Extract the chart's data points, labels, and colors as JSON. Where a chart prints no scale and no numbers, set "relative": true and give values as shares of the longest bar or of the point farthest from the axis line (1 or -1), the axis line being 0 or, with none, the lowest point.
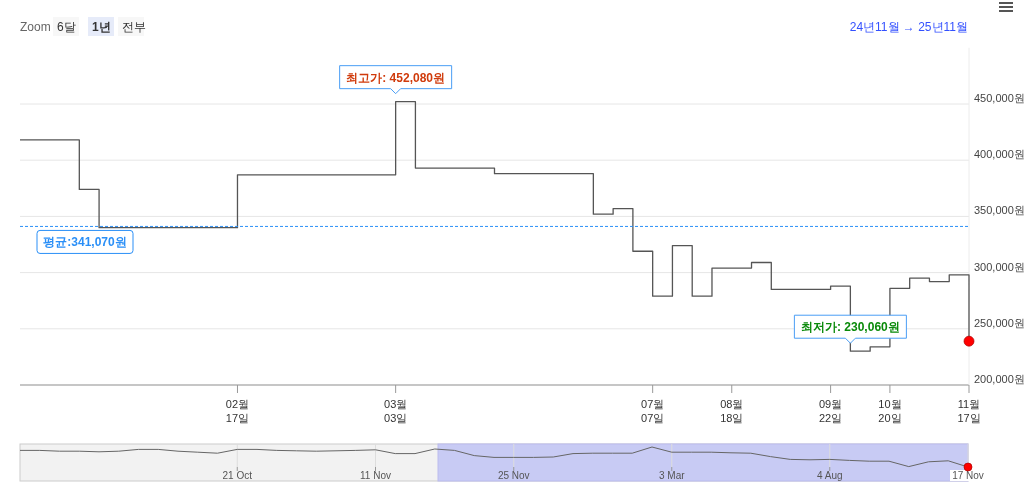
{
  "chart_data": [
    {
      "type": "step",
      "annotations": [
        "Zoom",
        "6달",
        "1년",
        "전부",
        "24년11월 → 25년11월",
        {
          "text": "최고가: 452,080원",
          "y": 452080
        },
        {
          "text": "최저가: 230,060원",
          "y": 230060
        }
      ],
      "categories": [
        null,
        null,
        null,
        null,
        null,
        null,
        null,
        null,
        null,
        null,
        null,
        "02월\n17일",
        null,
        null,
        null,
        null,
        null,
        null,
        null,
        "03월\n03일",
        null,
        null,
        null,
        null,
        null,
        null,
        null,
        null,
        null,
        null,
        null,
        null,
        "07월\n07일",
        null,
        null,
        null,
        "08월\n18일",
        null,
        null,
        null,
        null,
        "09월\n22일",
        null,
        null,
        "10월\n20일",
        null,
        null,
        null,
        "11월\n17일"
      ],
      "series": [
        {
          "color": "#555555",
          "values": [
            418000,
            418000,
            418000,
            374000,
            340000,
            340000,
            340000,
            340000,
            340000,
            340000,
            340000,
            387000,
            387000,
            387000,
            387000,
            387000,
            387000,
            387000,
            387000,
            452080,
            393000,
            393000,
            393000,
            393000,
            388000,
            388000,
            388000,
            388000,
            388000,
            352000,
            357000,
            319000,
            279000,
            324000,
            279000,
            304000,
            304000,
            309000,
            285000,
            285000,
            285000,
            288000,
            230060,
            234000,
            286000,
            295000,
            292000,
            298000,
            239000
          ]
        },
        {
          "type": "scatter",
          "marker": "circle",
          "color": "#ff0000",
          "values": [
            null,
            null,
            null,
            null,
            null,
            null,
            null,
            null,
            null,
            null,
            null,
            null,
            null,
            null,
            null,
            null,
            null,
            null,
            null,
            null,
            null,
            null,
            null,
            null,
            null,
            null,
            null,
            null,
            null,
            null,
            null,
            null,
            null,
            null,
            null,
            null,
            null,
            null,
            null,
            null,
            null,
            null,
            null,
            null,
            null,
            null,
            null,
            null,
            239000
          ]
        }
      ],
      "ylim": [
        200000,
        500000
      ],
      "yticks": [
        {
          "value": 200000,
          "label": "200,000원"
        },
        {
          "value": 250000,
          "label": "250,000원"
        },
        {
          "value": 300000,
          "label": "300,000원"
        },
        {
          "value": 350000,
          "label": "350,000원"
        },
        {
          "value": 400000,
          "label": "400,000원"
        },
        {
          "value": 450000,
          "label": "450,000원"
        }
      ],
      "ref_lines": [
        {
          "axis": "y",
          "value": 341070,
          "label": "평균:341,070원",
          "color": "#2a8ff7",
          "line_style": "dashed"
        }
      ],
      "grid": "y",
      "marker": "none",
      "line_style": "solid"
    },
    {
      "type": "line",
      "relative": true,
      "categories": [
        null,
        null,
        null,
        null,
        null,
        null,
        null,
        null,
        null,
        null,
        null,
        "21 Oct",
        null,
        null,
        null,
        null,
        null,
        null,
        "11 Nov",
        null,
        null,
        null,
        null,
        null,
        null,
        "25 Nov",
        null,
        null,
        null,
        null,
        null,
        null,
        null,
        "3 Mar",
        null,
        null,
        null,
        null,
        null,
        null,
        null,
        "4 Aug",
        null,
        null,
        null,
        null,
        null,
        null,
        "17 Nov"
      ],
      "series": [
        {
          "color": "#666666",
          "values": [
            0.83,
            0.83,
            0.79,
            0.79,
            0.76,
            0.79,
            0.88,
            0.88,
            0.79,
            0.74,
            0.69,
            0.88,
            0.88,
            0.83,
            0.81,
            0.79,
            0.81,
            0.83,
            0.86,
            0.67,
            0.67,
            0.9,
            0.83,
            0.57,
            0.48,
            0.48,
            0.48,
            0.5,
            0.67,
            0.69,
            0.69,
            0.69,
            1,
            0.74,
            0.74,
            0.74,
            0.71,
            0.69,
            0.52,
            0.38,
            0.36,
            0.38,
            0.33,
            0.29,
            0.29,
            0.02,
            0.26,
            0.31,
            0
          ]
        },
        {
          "type": "scatter",
          "marker": "circle",
          "color": "#ff0000",
          "values": [
            null,
            null,
            null,
            null,
            null,
            null,
            null,
            null,
            null,
            null,
            null,
            null,
            null,
            null,
            null,
            null,
            null,
            null,
            null,
            null,
            null,
            null,
            null,
            null,
            null,
            null,
            null,
            null,
            null,
            null,
            null,
            null,
            null,
            null,
            null,
            null,
            null,
            null,
            null,
            null,
            null,
            null,
            null,
            null,
            null,
            null,
            null,
            null,
            0
          ]
        }
      ],
      "grid": "x",
      "marker": "none",
      "line_style": "solid"
    }
  ]
}
